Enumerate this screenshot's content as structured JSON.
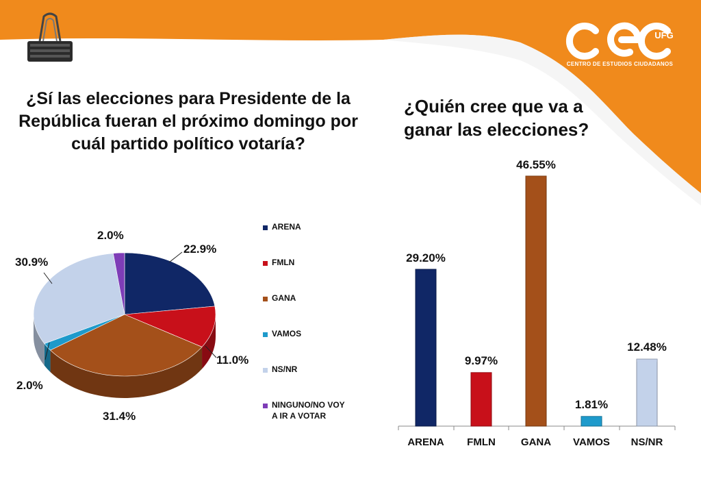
{
  "logo": {
    "subtitle": "CENTRO DE ESTUDIOS CIUDADANOS",
    "badge": "UFG"
  },
  "colors": {
    "orange": "#F08A1C",
    "arena": "#102766",
    "fmln": "#C8101A",
    "gana": "#A4501A",
    "vamos": "#1E9ACB",
    "nsnr": "#C3D2EA",
    "ninguno": "#7E3DB7"
  },
  "chart_data": [
    {
      "type": "pie",
      "title": "¿Sí las elecciones para Presidente de la República fueran el próximo domingo por cuál partido político votaría?",
      "categories": [
        "ARENA",
        "FMLN",
        "GANA",
        "VAMOS",
        "NS/NR",
        "NINGUNO/NO VOY A IR A VOTAR"
      ],
      "values": [
        22.9,
        11.0,
        31.4,
        2.0,
        30.9,
        2.0
      ],
      "labels": [
        "22.9%",
        "11.0%",
        "31.4%",
        "2.0%",
        "30.9%",
        "2.0%"
      ],
      "legend": "right"
    },
    {
      "type": "bar",
      "title": "¿Quién cree que va a ganar las elecciones?",
      "categories": [
        "ARENA",
        "FMLN",
        "GANA",
        "VAMOS",
        "NS/NR"
      ],
      "values": [
        29.2,
        9.97,
        46.55,
        1.81,
        12.48
      ],
      "labels": [
        "29.20%",
        "9.97%",
        "46.55%",
        "1.81%",
        "12.48%"
      ],
      "xlabel": "",
      "ylabel": "",
      "grid": false
    }
  ]
}
